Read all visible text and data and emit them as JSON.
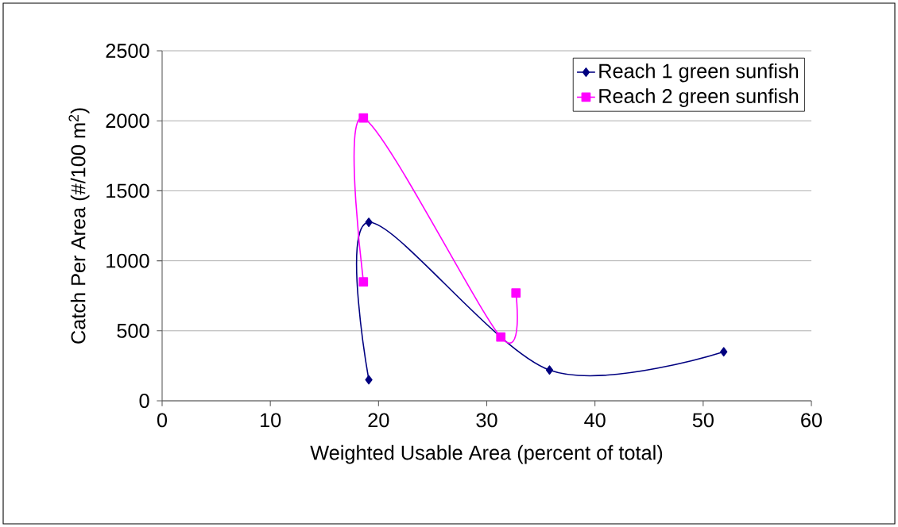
{
  "chart_data": {
    "type": "line",
    "xlabel": "Weighted Usable Area (percent of total)",
    "ylabel": "Catch Per Area (#/100 m$^{2}$)",
    "xlim": [
      0,
      60
    ],
    "xticks": [
      0,
      10,
      20,
      30,
      40,
      50,
      60
    ],
    "ylim": [
      0,
      2500
    ],
    "yticks": [
      0,
      500,
      1000,
      1500,
      2000,
      2500
    ],
    "grid": "y",
    "legend": "top right",
    "line_style": "solid",
    "series": [
      {
        "name": "Reach 1 green sunfish",
        "color": "#000080",
        "marker": "diamond",
        "x": [
          19.1,
          19.1,
          35.8,
          51.9
        ],
        "values": [
          150,
          1275,
          220,
          350
        ]
      },
      {
        "name": "Reach 2 green sunfish",
        "color": "#ff00ff",
        "marker": "square",
        "x": [
          18.6,
          18.6,
          31.3,
          32.7
        ],
        "values": [
          850,
          2020,
          455,
          770
        ]
      }
    ]
  }
}
